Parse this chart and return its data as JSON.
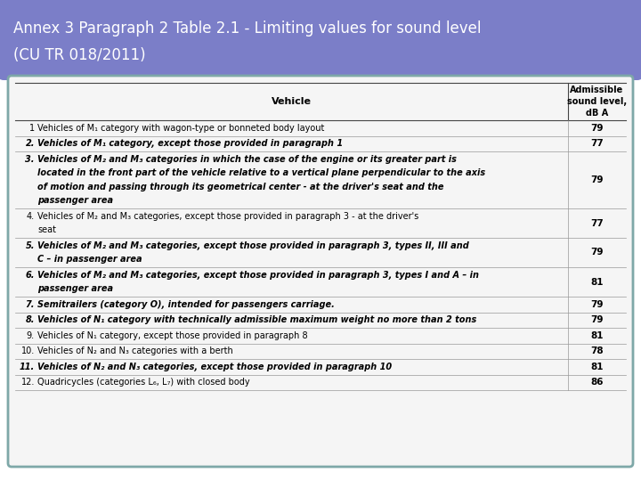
{
  "title_line1": "Annex 3 Paragraph 2 Table 2.1 - Limiting values for sound level",
  "title_line2": "(CU TR 018/2011)",
  "title_bg_color": "#7B7EC8",
  "title_text_color": "#FFFFFF",
  "table_bg_color": "#F5F5F5",
  "outer_bg_color": "#FFFFFF",
  "border_color": "#7EA8A8",
  "col1_header": "Vehicle",
  "col2_header": "Admissible\nsound level,\ndB A",
  "rows": [
    {
      "num": "1",
      "desc": "Vehicles of M₁ category with wagon-type or bonneted body layout",
      "value": "79",
      "bold": false,
      "lines": 1
    },
    {
      "num": "2.",
      "desc": "Vehicles of M₁ category, except those provided in paragraph 1",
      "value": "77",
      "bold": true,
      "lines": 1
    },
    {
      "num": "3.",
      "desc": "Vehicles of M₂ and M₃ categories in which the case of the engine or its greater part is\nlocated in the front part of the vehicle relative to a vertical plane perpendicular to the axis\nof motion and passing through its geometrical center - at the driver's seat and the\npassenger area",
      "value": "79",
      "bold": true,
      "lines": 4
    },
    {
      "num": "4.",
      "desc": "Vehicles of M₂ and M₃ categories, except those provided in paragraph 3 - at the driver's\nseat",
      "value": "77",
      "bold": false,
      "lines": 2
    },
    {
      "num": "5.",
      "desc": "Vehicles of M₂ and M₃ categories, except those provided in paragraph 3, types II, III and\nC – in passenger area",
      "value": "79",
      "bold": true,
      "lines": 2
    },
    {
      "num": "6.",
      "desc": "Vehicles of M₂ and M₃ categories, except those provided in paragraph 3, types I and A – in\npassenger area",
      "value": "81",
      "bold": true,
      "lines": 2
    },
    {
      "num": "7.",
      "desc": "Semitrailers (category O), intended for passengers carriage.",
      "value": "79",
      "bold": true,
      "lines": 1
    },
    {
      "num": "8.",
      "desc": "Vehicles of N₁ category with technically admissible maximum weight no more than 2 tons",
      "value": "79",
      "bold": true,
      "lines": 1
    },
    {
      "num": "9.",
      "desc": "Vehicles of N₁ category, except those provided in paragraph 8",
      "value": "81",
      "bold": false,
      "lines": 1
    },
    {
      "num": "10.",
      "desc": "Vehicles of N₂ and N₃ categories with a berth",
      "value": "78",
      "bold": false,
      "lines": 1
    },
    {
      "num": "11.",
      "desc": "Vehicles of N₂ and N₃ categories, except those provided in paragraph 10",
      "value": "81",
      "bold": true,
      "lines": 1
    },
    {
      "num": "12.",
      "desc": "Quadricycles (categories L₆, L₇) with closed body",
      "value": "86",
      "bold": false,
      "lines": 1
    }
  ]
}
